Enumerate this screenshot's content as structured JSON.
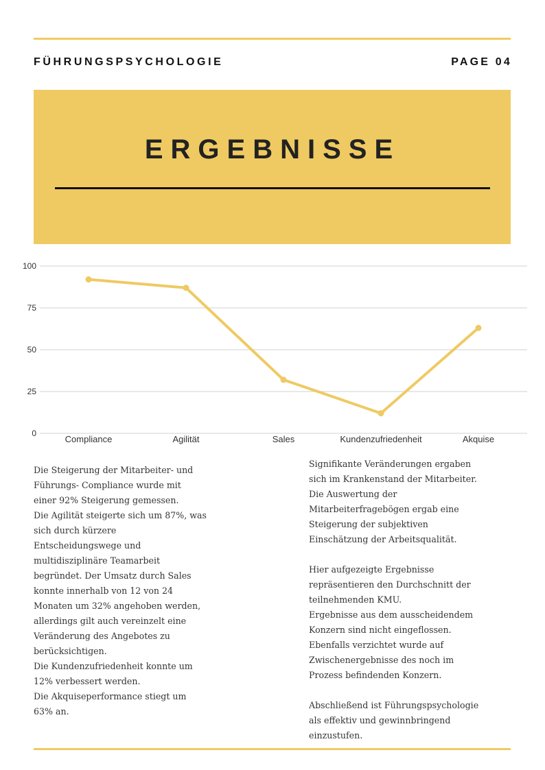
{
  "header": {
    "left": "FÜHRUNGSPSYCHOLOGIE",
    "right": "PAGE 04"
  },
  "banner": {
    "title": "ERGEBNISSE"
  },
  "colors": {
    "accent": "#efca62",
    "grid": "#d9d9d9"
  },
  "chart_data": {
    "type": "line",
    "categories": [
      "Compliance",
      "Agilität",
      "Sales",
      "Kundenzufriedenheit",
      "Akquise"
    ],
    "values": [
      92,
      87,
      32,
      12,
      63
    ],
    "ylim": [
      0,
      100
    ],
    "yticks": [
      "0",
      "25",
      "50",
      "75",
      "100"
    ],
    "grid": true
  },
  "text": {
    "left": [
      [
        "Die Steigerung der Mitarbeiter- und",
        "Führungs- Compliance wurde mit",
        "einer 92% Steigerung gemessen.",
        "Die Agilität steigerte sich um 87%, was",
        "sich durch kürzere",
        "Entscheidungswege und",
        "multidisziplinäre Teamarbeit",
        "begründet. Der Umsatz durch Sales",
        "konnte innerhalb von 12 von 24",
        "Monaten um 32% angehoben werden,",
        "allerdings gilt auch vereinzelt eine",
        "Veränderung des Angebotes zu",
        "berücksichtigen.",
        "Die Kundenzufriedenheit konnte um",
        "12% verbessert werden.",
        "Die Akquiseperformance stiegt um",
        "63% an."
      ]
    ],
    "right": [
      [
        "Signifikante Veränderungen ergaben",
        "sich im Krankenstand der Mitarbeiter.",
        "Die Auswertung der",
        "Mitarbeiterfragebögen ergab eine",
        "Steigerung der subjektiven",
        "Einschätzung der Arbeitsqualität."
      ],
      [
        "Hier aufgezeigte Ergebnisse",
        "repräsentieren den Durchschnitt der",
        "teilnehmenden KMU.",
        "Ergebnisse aus dem ausscheidendem",
        "Konzern sind nicht eingeflossen.",
        "Ebenfalls verzichtet wurde auf",
        "Zwischenergebnisse des noch im",
        "Prozess befindenden Konzern."
      ],
      [
        "Abschließend ist Führungspsychologie",
        "als effektiv und gewinnbringend",
        "einzustufen."
      ]
    ]
  }
}
